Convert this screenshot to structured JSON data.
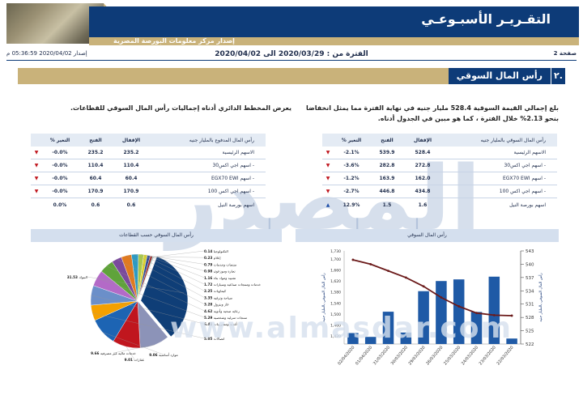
{
  "header": {
    "title": "التقـريـر الأسبـوعـي",
    "subtitle": "إصدار مركز معلومات البورصة المصرية"
  },
  "meta": {
    "page": "صفحة 2",
    "period": "الفترة من : 2020/03/29 الى 2020/04/02",
    "issued": "إصدار 2020/04/02 05:36:59 م"
  },
  "section": {
    "number": "٢.",
    "title": "رأس المال السوقي"
  },
  "paragraphs": {
    "right": "بلغ إجمالي القيمة السوقية 528.4 مليار جنيه في نهاية الفترة مما يمثل انخفاضا بنحو 2.13% خلال الفترة ، كما هو مبين في الجدول أدناه.",
    "left": "يعرض المخطط الدائري أدناه إجماليات رأس المال السوقي للقطاعات."
  },
  "table_market_cap": {
    "headers": {
      "name": "رأس المال السوقي بالمليار جنيه",
      "close": "الإقفال",
      "open": "الفتح",
      "change": "% التغير"
    },
    "rows": [
      {
        "name": "الاسهم الرئيسية",
        "close": "528.4",
        "open": "539.9",
        "change": "-2.1%",
        "dir": "down"
      },
      {
        "name": "- اسهم اجي اكس30",
        "close": "272.8",
        "open": "282.8",
        "change": "-3.6%",
        "dir": "down"
      },
      {
        "name": "- اسهم EGX70 EWI",
        "close": "162.0",
        "open": "163.9",
        "change": "-1.2%",
        "dir": "down"
      },
      {
        "name": "- اسهم اجي اكس 100",
        "close": "434.8",
        "open": "446.8",
        "change": "-2.7%",
        "dir": "down"
      },
      {
        "name": "اسهم بورصة النيل",
        "close": "1.6",
        "open": "1.5",
        "change": "12.9%",
        "dir": "up"
      }
    ]
  },
  "table_free_float": {
    "headers": {
      "name": "رأس المال المدفوع بالمليار جنيه",
      "close": "الإقفال",
      "open": "الفتح",
      "change": "% التغير"
    },
    "rows": [
      {
        "name": "الاسهم الرئيسية",
        "close": "235.2",
        "open": "235.2",
        "change": "-0.0%",
        "dir": "down"
      },
      {
        "name": "- اسهم اجي اكس30",
        "close": "110.4",
        "open": "110.4",
        "change": "-0.0%",
        "dir": "down"
      },
      {
        "name": "- اسهم EGX70 EWI",
        "close": "60.4",
        "open": "60.4",
        "change": "-0.0%",
        "dir": "down"
      },
      {
        "name": "- اسهم اجي اكس 100",
        "close": "170.9",
        "open": "170.9",
        "change": "-0.0%",
        "dir": "down"
      },
      {
        "name": "اسهم بورصة النيل",
        "close": "0.6",
        "open": "0.6",
        "change": "0.0%",
        "dir": "none"
      }
    ]
  },
  "panels": {
    "bar_title": "رأس المال السوقي",
    "pie_title": "رأس المال السوقي حسب القطاعات"
  },
  "chart_data": [
    {
      "type": "bar",
      "title": "رأس المال السوقي",
      "categories": [
        "02/04/2020",
        "01/04/2020",
        "31/03/2020",
        "30/03/2020",
        "29/03/2020",
        "26/03/2020",
        "25/03/2020",
        "24/03/2020",
        "23/03/2020",
        "22/03/2020"
      ],
      "series": [
        {
          "name": "رأس المال السوقي بالمليار جنيه",
          "axis": "left",
          "values": [
            1430,
            1416,
            1508,
            1432,
            1583,
            1620,
            1626,
            1507,
            1636,
            1410
          ]
        },
        {
          "name": "",
          "axis": "right",
          "type": "line",
          "values": [
            541,
            540,
            538.5,
            537,
            535,
            532.5,
            530.5,
            529,
            528.5,
            528.4
          ]
        }
      ],
      "ylabel_left": "رأس المال السوقي بالمليار جنيه",
      "ylabel_right": "رأس المال السوقي بالمليار جنيه",
      "ylim_left": [
        1390,
        1730
      ],
      "yticks_left": [
        "1,420",
        "1,460",
        "1,500",
        "1,540",
        "1,580",
        "1,620",
        "1,660",
        "1,700",
        "1,730"
      ],
      "ylim_right": [
        522,
        543
      ],
      "yticks_right": [
        "522",
        "525",
        "528",
        "531",
        "534",
        "537",
        "540",
        "543"
      ]
    },
    {
      "type": "pie",
      "title": "رأس المال السوقي حسب القطاعات",
      "slices": [
        {
          "label": "البنوك",
          "value": 31.53,
          "color": "#0f3e77"
        },
        {
          "label": "خدمات مالية غير مصرفية",
          "value": 9.66,
          "color": "#8c93b8"
        },
        {
          "label": "عقارات",
          "value": 9.01,
          "color": "#c0161e"
        },
        {
          "label": "موارد أساسية",
          "value": 9.06,
          "color": "#1d64b3"
        },
        {
          "label": "اتصالات",
          "value": 5.05,
          "color": "#f4a000"
        },
        {
          "label": "أغذية ومشروبات",
          "value": 6.41,
          "color": "#6b8fc9"
        },
        {
          "label": "منتجات منزلية وشخصية",
          "value": 5.29,
          "color": "#b36ac7"
        },
        {
          "label": "رعاية صحية وأدوية",
          "value": 4.62,
          "color": "#5fa33a"
        },
        {
          "label": "غاز وبترول",
          "value": 3.28,
          "color": "#7a4a9c"
        },
        {
          "label": "سياحة وترفيه",
          "value": 3.35,
          "color": "#e07a1f"
        },
        {
          "label": "كيماويات",
          "value": 2.25,
          "color": "#2e9ac2"
        },
        {
          "label": "خدمات ومنتجات صناعية وسيارات",
          "value": 1.72,
          "color": "#a9c84c"
        },
        {
          "label": "تشييد ومواد بناء",
          "value": 1.16,
          "color": "#d9d02c"
        },
        {
          "label": "تجارة وموزعون",
          "value": 0.98,
          "color": "#2f4c96"
        },
        {
          "label": "منتجات وخدمات",
          "value": 0.79,
          "color": "#9b2a2a"
        },
        {
          "label": "إعلام",
          "value": 0.23,
          "color": "#3cba9f"
        },
        {
          "label": "التكنولوجيا",
          "value": 0.14,
          "color": "#5b5b5b"
        }
      ]
    }
  ]
}
